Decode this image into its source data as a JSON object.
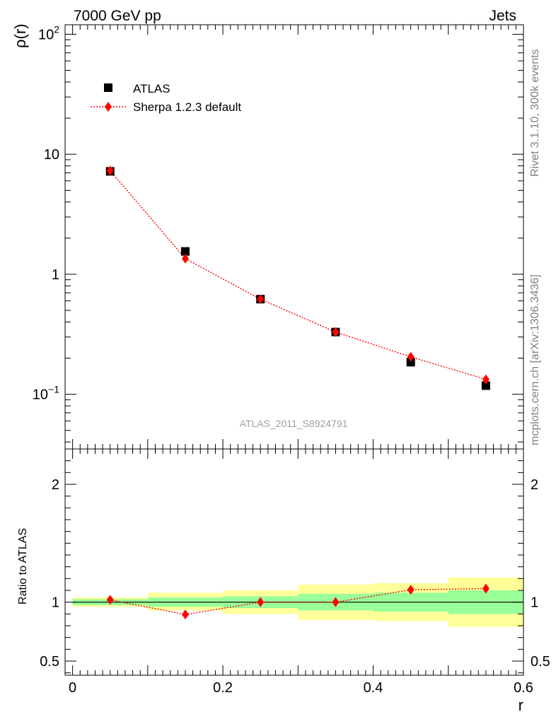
{
  "header": {
    "left_title": "7000 GeV pp",
    "right_title": "Jets"
  },
  "side_text": {
    "rivet": "Rivet 3.1.10,  300k events",
    "source": "mcplots.cern.ch [arXiv:1306.3436]"
  },
  "analysis_label": "ATLAS_2011_S8924791",
  "chart_data": [
    {
      "type": "scatter",
      "ylabel": "ρ(r)",
      "yscale": "log",
      "ylim": [
        0.035,
        120
      ],
      "xlim": [
        -0.01,
        0.6
      ],
      "y_tick_labels": {
        "0.1": "10⁻¹",
        "1": "1",
        "10": "10",
        "100": "10²"
      },
      "legend": {
        "placement": "top-left",
        "entries": [
          "ATLAS",
          "Sherpa 1.2.3 default"
        ]
      },
      "series": [
        {
          "name": "ATLAS",
          "color": "#000000",
          "marker": "square",
          "x": [
            0.05,
            0.15,
            0.25,
            0.35,
            0.45,
            0.55
          ],
          "values": [
            7.2,
            1.55,
            0.62,
            0.33,
            0.185,
            0.118
          ]
        },
        {
          "name": "Sherpa 1.2.3 default",
          "color": "#ff0000",
          "marker": "diamond",
          "line": "dotted",
          "x": [
            0.05,
            0.15,
            0.25,
            0.35,
            0.45,
            0.55
          ],
          "values": [
            7.3,
            1.35,
            0.62,
            0.33,
            0.205,
            0.133
          ]
        }
      ]
    },
    {
      "type": "scatter",
      "xlabel": "r",
      "ylabel": "Ratio to ATLAS",
      "ylim": [
        0.38,
        2.3
      ],
      "xlim": [
        -0.01,
        0.6
      ],
      "x_ticks": [
        0,
        0.2,
        0.4,
        0.6
      ],
      "x_tick_labels": [
        "0",
        "0.2",
        "0.4",
        "0.6"
      ],
      "y_ticks": [
        0.5,
        1,
        2
      ],
      "y_tick_labels": [
        "0.5",
        "1",
        "2"
      ],
      "reference_line": 1,
      "bands": {
        "bins": [
          [
            0.0,
            0.1
          ],
          [
            0.1,
            0.2
          ],
          [
            0.2,
            0.3
          ],
          [
            0.3,
            0.4
          ],
          [
            0.4,
            0.5
          ],
          [
            0.5,
            0.6
          ]
        ],
        "inner_color": "#99ff99",
        "outer_color": "#ffff99",
        "inner": [
          [
            0.975,
            1.025
          ],
          [
            0.96,
            1.04
          ],
          [
            0.95,
            1.05
          ],
          [
            0.93,
            1.07
          ],
          [
            0.92,
            1.08
          ],
          [
            0.9,
            1.1
          ]
        ],
        "outer": [
          [
            0.96,
            1.04
          ],
          [
            0.93,
            1.08
          ],
          [
            0.9,
            1.1
          ],
          [
            0.85,
            1.15
          ],
          [
            0.84,
            1.16
          ],
          [
            0.79,
            1.21
          ]
        ]
      },
      "series": [
        {
          "name": "Sherpa 1.2.3 default",
          "color": "#ff0000",
          "marker": "diamond",
          "line": "dotted",
          "x": [
            0.05,
            0.15,
            0.25,
            0.35,
            0.45,
            0.55
          ],
          "values": [
            1.02,
            0.895,
            1.0,
            1.0,
            1.105,
            1.115
          ],
          "errors": [
            0.02,
            0.03,
            0.04,
            0.04,
            0.035,
            0.035
          ]
        }
      ]
    }
  ]
}
